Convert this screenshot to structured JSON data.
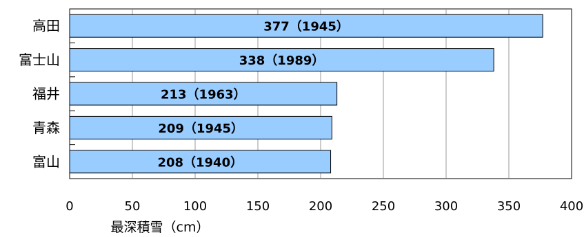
{
  "chart_data": {
    "type": "bar",
    "orientation": "horizontal",
    "categories": [
      "高田",
      "富士山",
      "福井",
      "青森",
      "富山"
    ],
    "values": [
      377,
      338,
      213,
      209,
      208
    ],
    "data_labels": [
      "377（1945）",
      "338（1989）",
      "213（1963）",
      "209（1945）",
      "208（1940）"
    ],
    "title": "",
    "xlabel": "最深積雪（cm）",
    "ylabel": "",
    "xlim": [
      0,
      400
    ],
    "xticks": [
      0,
      50,
      100,
      150,
      200,
      250,
      300,
      350,
      400
    ],
    "grid": "vertical",
    "legend": "none",
    "colors": {
      "bar_fill": "#99ccff",
      "bar_stroke": "#000000",
      "grid": "#808080",
      "axis": "#000000"
    }
  }
}
